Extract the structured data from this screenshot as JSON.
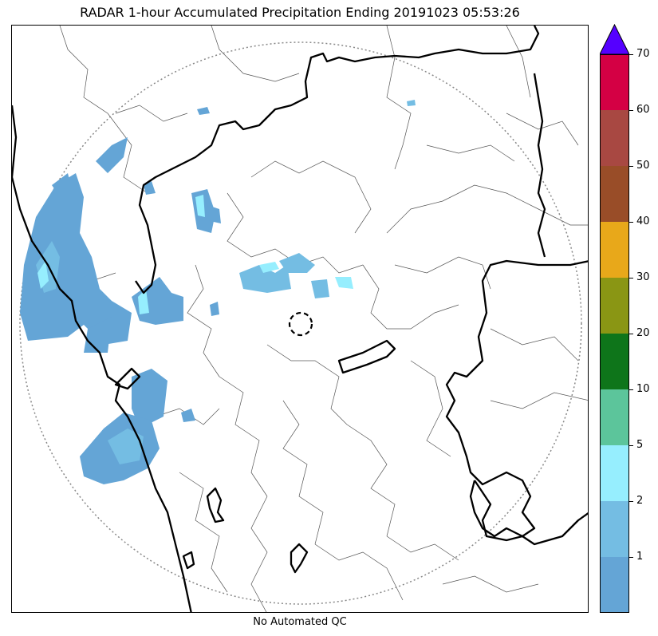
{
  "title": "RADAR 1-hour Accumulated Precipitation Ending 20191023 05:53:26",
  "footer_note": "No Automated QC",
  "colors": {
    "coast_line": "#000000",
    "district_line": "#555555",
    "range_ring": "#888888",
    "rain_light": "#64a5d6",
    "rain_mid": "#74bde3",
    "rain_high": "#96eefe"
  },
  "colorbar": {
    "levels": [
      {
        "label": "",
        "color": "#64a5d6"
      },
      {
        "label": "1",
        "color": "#74bde3"
      },
      {
        "label": "2",
        "color": "#96eefe"
      },
      {
        "label": "5",
        "color": "#5cc59b"
      },
      {
        "label": "10",
        "color": "#0e751a"
      },
      {
        "label": "20",
        "color": "#8a9614"
      },
      {
        "label": "30",
        "color": "#e8a81a"
      },
      {
        "label": "40",
        "color": "#994d28"
      },
      {
        "label": "50",
        "color": "#a84842"
      },
      {
        "label": "60",
        "color": "#d40044"
      }
    ],
    "top_label": "70",
    "extend_color": "#5500ff"
  }
}
